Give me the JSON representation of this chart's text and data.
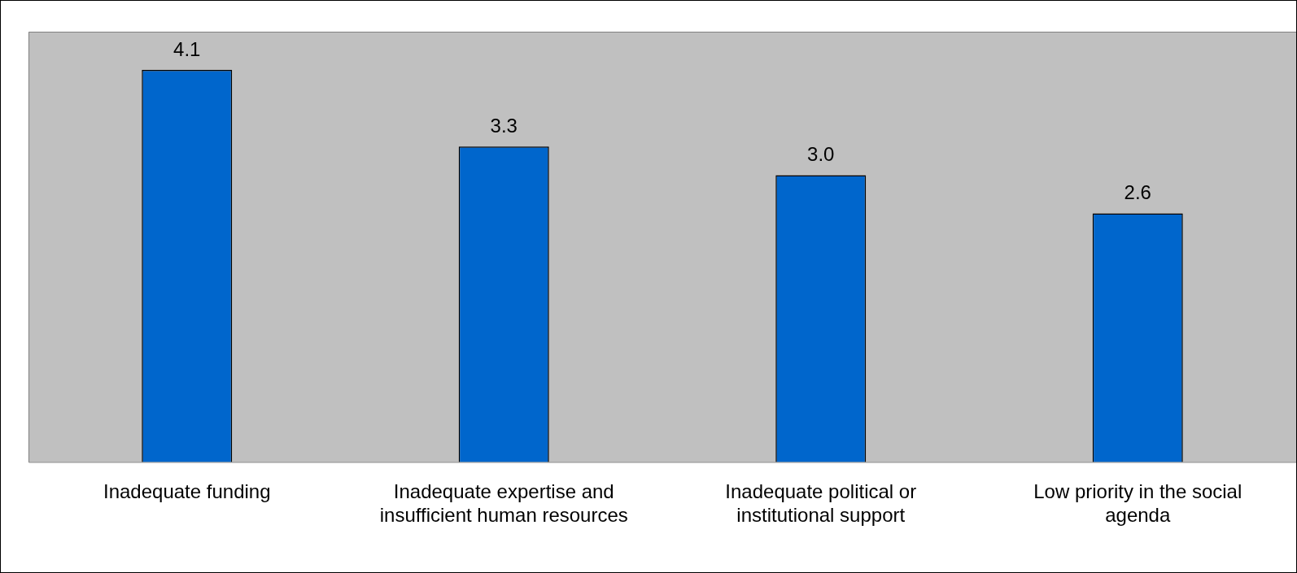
{
  "chart_data": {
    "type": "bar",
    "categories": [
      "Inadequate funding",
      "Inadequate expertise and insufficient human resources",
      "Inadequate political or institutional support",
      "Low priority in the social agenda"
    ],
    "values": [
      4.1,
      3.3,
      3.0,
      2.6
    ],
    "color": "#0066cc",
    "ylim": [
      0,
      4.5
    ],
    "value_labels": [
      "4.1",
      "3.3",
      "3.0",
      "2.6"
    ],
    "grid": false,
    "legend": false,
    "tick_labels": "x"
  }
}
